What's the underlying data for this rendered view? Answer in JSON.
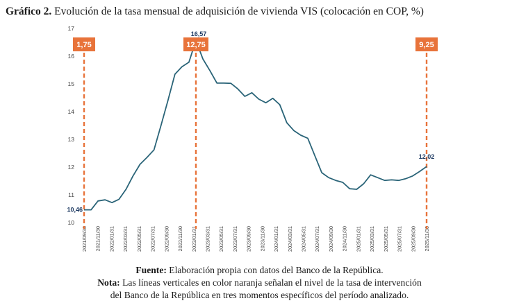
{
  "title": {
    "bold": "Gráfico 2.",
    "text": " Evolución de la tasa mensual de adquisición de vivienda VIS (colocación en COP, %)"
  },
  "footer": {
    "source_label": "Fuente:",
    "source_text": " Elaboración propia con datos del Banco de la República.",
    "note_label": "Nota:",
    "note_text_1": " Las líneas verticales en color naranja señalan el nivel de la tasa de intervención",
    "note_text_2": "del Banco de la República en tres momentos específicos del período analizado."
  },
  "colors": {
    "line": "#2a6478",
    "marker": "#e8733a",
    "data_label": "#1f3b63"
  },
  "chart_data": {
    "type": "line",
    "title": "Evolución de la tasa mensual de adquisición de vivienda VIS (colocación en COP, %)",
    "xlabel": "",
    "ylabel": "",
    "ylim": [
      10,
      17
    ],
    "y_ticks": [
      "10",
      "11",
      "12",
      "13",
      "14",
      "15",
      "16",
      "17"
    ],
    "x_tick_labels": [
      "2021/09/30",
      "2021/11/30",
      "2022/01/31",
      "2022/03/31",
      "2022/05/31",
      "2022/07/31",
      "2022/09/30",
      "2022/11/30",
      "2023/01/31",
      "2023/03/31",
      "2023/05/31",
      "2023/07/31",
      "2023/09/30",
      "2023/11/30",
      "2024/01/31",
      "2024/03/31",
      "2024/05/31",
      "2024/07/31",
      "2024/09/30",
      "2024/11/30",
      "2025/01/31",
      "2025/03/31",
      "2025/05/31",
      "2025/07/31",
      "2025/09/30",
      "2025/11/30"
    ],
    "grid": false,
    "series": [
      {
        "values": [
          10.46,
          10.46,
          10.78,
          10.82,
          10.72,
          10.84,
          11.2,
          11.68,
          12.1,
          12.35,
          12.62,
          13.5,
          14.4,
          15.35,
          15.62,
          15.78,
          16.57,
          15.9,
          15.48,
          15.03,
          15.03,
          15.02,
          14.82,
          14.55,
          14.68,
          14.45,
          14.32,
          14.48,
          14.25,
          13.6,
          13.32,
          13.15,
          13.04,
          12.42,
          11.8,
          11.62,
          11.52,
          11.45,
          11.22,
          11.2,
          11.4,
          11.72,
          11.62,
          11.52,
          11.54,
          11.52,
          11.58,
          11.68,
          11.84,
          12.02
        ]
      }
    ],
    "data_labels": [
      {
        "index": 0,
        "text": "10,46"
      },
      {
        "index": 16,
        "text": "16,57"
      },
      {
        "index": 49,
        "text": "12,02"
      }
    ],
    "markers": [
      {
        "index": 0,
        "label": "1,75"
      },
      {
        "index": 16,
        "label": "12,75"
      },
      {
        "index": 49,
        "label": "9,25"
      }
    ]
  }
}
